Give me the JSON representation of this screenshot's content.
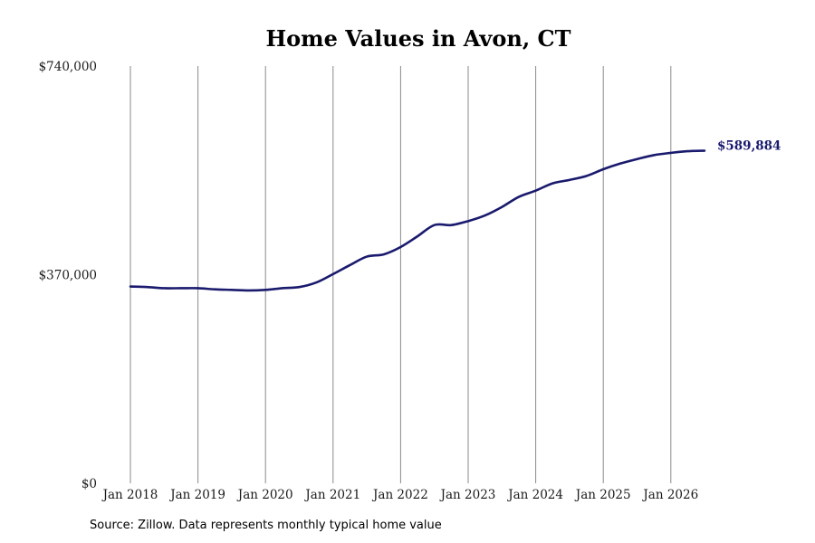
{
  "chart_data": {
    "type": "line",
    "title": "Home Values in Avon, CT",
    "xlabel": "",
    "ylabel": "",
    "x_tick_labels": [
      "Jan 2018",
      "Jan 2019",
      "Jan 2020",
      "Jan 2021",
      "Jan 2022",
      "Jan 2023",
      "Jan 2024",
      "Jan 2025",
      "Jan 2026"
    ],
    "y_tick_labels": [
      "$740,000",
      "$370,000",
      "$0"
    ],
    "y_ticks": [
      740000,
      370000,
      0
    ],
    "ylim": [
      0,
      740000
    ],
    "xlim": [
      "2018-01",
      "2026-07"
    ],
    "grid": "vertical lines at x ticks",
    "line_color": "#1a1a6e",
    "series": [
      {
        "x": [
          "2018-01",
          "2018-04",
          "2018-07",
          "2018-10",
          "2019-01",
          "2019-04",
          "2019-07",
          "2019-10",
          "2020-01",
          "2020-04",
          "2020-07",
          "2020-10",
          "2021-01",
          "2021-04",
          "2021-07",
          "2021-10",
          "2022-01",
          "2022-04",
          "2022-07",
          "2022-10",
          "2023-01",
          "2023-04",
          "2023-07",
          "2023-10",
          "2024-01",
          "2024-04",
          "2024-07",
          "2024-10",
          "2025-01",
          "2025-04",
          "2025-07",
          "2025-10",
          "2026-01",
          "2026-04",
          "2026-07"
        ],
        "values": [
          349000,
          348000,
          346000,
          346000,
          346000,
          344000,
          343000,
          342000,
          343000,
          346000,
          348000,
          356000,
          371000,
          387000,
          402000,
          406000,
          419000,
          438000,
          458000,
          458000,
          465000,
          475000,
          490000,
          508000,
          519000,
          532000,
          538000,
          545000,
          557000,
          567000,
          575000,
          582000,
          586000,
          589000,
          589884
        ]
      }
    ],
    "end_label": "$589,884"
  },
  "source_note": "Source: Zillow. Data represents monthly typical home value"
}
